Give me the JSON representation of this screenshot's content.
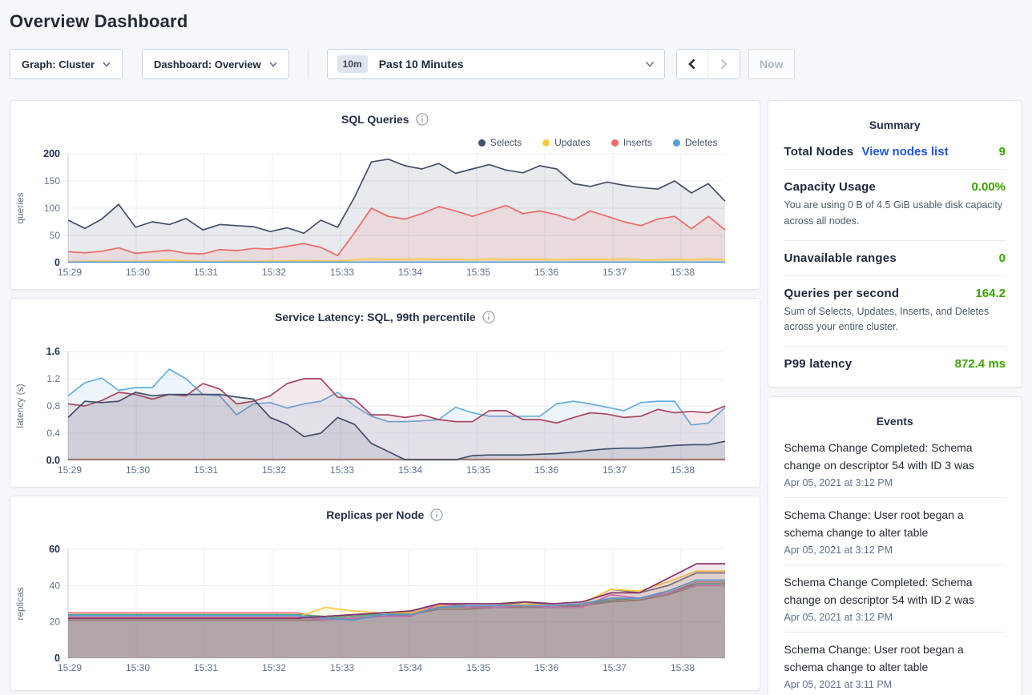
{
  "page": {
    "title": "Overview Dashboard"
  },
  "toolbar": {
    "graph_dropdown": {
      "label": "Graph: Cluster"
    },
    "dashboard_dropdown": {
      "label": "Dashboard: Overview"
    },
    "time_picker": {
      "badge": "10m",
      "label": "Past 10 Minutes"
    },
    "now_button": "Now"
  },
  "colors": {
    "selects": "#44506B",
    "updates": "#FFC940",
    "inserts": "#F06969",
    "deletes": "#55A3D6",
    "link_blue": "#2057DE",
    "value_green": "#3CA200"
  },
  "chart_data": [
    {
      "type": "area",
      "title": "SQL Queries",
      "ylabel": "queries",
      "ymax": 200,
      "ytick_values": [
        0,
        50,
        100,
        150,
        200
      ],
      "ytick_labels": [
        "0",
        "50",
        "100",
        "150",
        "200"
      ],
      "xticks": [
        "15:29",
        "15:30",
        "15:31",
        "15:32",
        "15:33",
        "15:34",
        "15:35",
        "15:36",
        "15:37",
        "15:38"
      ],
      "legend": [
        {
          "name": "Selects",
          "color": "#44506B"
        },
        {
          "name": "Updates",
          "color": "#FFC940"
        },
        {
          "name": "Inserts",
          "color": "#F06969"
        },
        {
          "name": "Deletes",
          "color": "#55A3D6"
        }
      ],
      "series": [
        {
          "name": "Selects",
          "color": "#44506B",
          "values": [
            78,
            63,
            80,
            107,
            65,
            75,
            70,
            81,
            60,
            70,
            68,
            66,
            57,
            64,
            54,
            78,
            65,
            120,
            185,
            190,
            178,
            172,
            182,
            164,
            172,
            180,
            170,
            165,
            178,
            172,
            145,
            140,
            148,
            142,
            138,
            135,
            150,
            128,
            145,
            113
          ]
        },
        {
          "name": "Inserts",
          "color": "#F06969",
          "values": [
            20,
            18,
            21,
            27,
            17,
            20,
            23,
            17,
            16,
            24,
            22,
            26,
            25,
            30,
            35,
            28,
            13,
            55,
            100,
            85,
            80,
            90,
            103,
            95,
            85,
            95,
            105,
            90,
            95,
            88,
            78,
            95,
            85,
            75,
            68,
            80,
            85,
            62,
            85,
            60
          ]
        },
        {
          "name": "Updates",
          "color": "#FFC940",
          "values": [
            2,
            2,
            3,
            2,
            2,
            3,
            5,
            3,
            2,
            2,
            3,
            2,
            3,
            3,
            4,
            3,
            3,
            5,
            7,
            6,
            6,
            7,
            6,
            6,
            5,
            7,
            6,
            6,
            6,
            5,
            6,
            6,
            6,
            7,
            5,
            5,
            6,
            5,
            7,
            5
          ]
        },
        {
          "name": "Deletes",
          "color": "#55A3D6",
          "values": [
            1,
            1,
            1,
            1,
            1,
            1,
            1,
            1,
            1,
            1,
            1,
            1,
            1,
            1,
            1,
            1,
            1,
            1,
            1,
            1,
            1,
            1,
            1,
            1,
            1,
            1,
            1,
            1,
            1,
            1,
            1,
            1,
            1,
            1,
            1,
            1,
            1,
            1,
            1,
            1
          ]
        }
      ]
    },
    {
      "type": "area",
      "title": "Service Latency: SQL, 99th percentile",
      "ylabel": "latency (s)",
      "ymax": 1.6,
      "ytick_values": [
        0,
        0.4,
        0.8,
        1.2,
        1.6
      ],
      "ytick_labels": [
        "0.0",
        "0.4",
        "0.8",
        "1.2",
        "1.6"
      ],
      "xticks": [
        "15:29",
        "15:30",
        "15:31",
        "15:32",
        "15:33",
        "15:34",
        "15:35",
        "15:36",
        "15:37",
        "15:38"
      ],
      "series": [
        {
          "name": "s-baseline",
          "color": "#B5754C",
          "values": [
            0.015,
            0.015,
            0.015,
            0.015,
            0.015,
            0.015,
            0.015,
            0.015,
            0.015,
            0.015,
            0.015,
            0.015,
            0.015,
            0.015,
            0.015,
            0.015,
            0.015,
            0.015,
            0.015,
            0.015,
            0.015,
            0.015,
            0.015,
            0.015,
            0.015,
            0.015,
            0.015,
            0.015,
            0.015,
            0.015,
            0.015,
            0.015,
            0.015,
            0.015,
            0.015,
            0.015,
            0.015,
            0.015,
            0.015,
            0.015
          ]
        },
        {
          "name": "s-blue",
          "color": "#67AEDC",
          "values": [
            0.95,
            1.14,
            1.21,
            1.03,
            1.07,
            1.07,
            1.34,
            1.2,
            0.97,
            0.95,
            0.67,
            0.83,
            0.85,
            0.77,
            0.83,
            0.87,
            1.0,
            0.8,
            0.65,
            0.57,
            0.57,
            0.58,
            0.6,
            0.78,
            0.7,
            0.65,
            0.65,
            0.65,
            0.65,
            0.83,
            0.87,
            0.83,
            0.78,
            0.73,
            0.85,
            0.87,
            0.87,
            0.52,
            0.55,
            0.78
          ]
        },
        {
          "name": "s-maroon",
          "color": "#A84860",
          "values": [
            0.83,
            0.8,
            0.88,
            1.0,
            0.97,
            0.9,
            0.97,
            0.95,
            1.13,
            1.05,
            0.83,
            0.87,
            0.95,
            1.13,
            1.2,
            1.2,
            0.93,
            0.9,
            0.67,
            0.67,
            0.63,
            0.67,
            0.6,
            0.57,
            0.57,
            0.73,
            0.73,
            0.6,
            0.6,
            0.55,
            0.63,
            0.7,
            0.68,
            0.63,
            0.65,
            0.75,
            0.7,
            0.72,
            0.7,
            0.8
          ]
        },
        {
          "name": "s-navy",
          "color": "#44506B",
          "values": [
            0.63,
            0.87,
            0.85,
            0.87,
            1.0,
            0.95,
            0.97,
            0.97,
            0.97,
            0.97,
            0.93,
            0.9,
            0.63,
            0.53,
            0.35,
            0.4,
            0.63,
            0.53,
            0.25,
            0.13,
            0.01,
            0.01,
            0.01,
            0.01,
            0.07,
            0.08,
            0.08,
            0.08,
            0.09,
            0.1,
            0.12,
            0.15,
            0.17,
            0.18,
            0.18,
            0.2,
            0.22,
            0.23,
            0.23,
            0.28
          ]
        }
      ]
    },
    {
      "type": "area",
      "title": "Replicas per Node",
      "ylabel": "replicas",
      "ymax": 60,
      "ytick_values": [
        0,
        20,
        40,
        60
      ],
      "ytick_labels": [
        "0",
        "20",
        "40",
        "60"
      ],
      "xticks": [
        "15:29",
        "15:30",
        "15:31",
        "15:32",
        "15:33",
        "15:34",
        "15:35",
        "15:36",
        "15:37",
        "15:38"
      ],
      "series": [
        {
          "name": "s1",
          "color": "#ED6E6E",
          "values": [
            25,
            25,
            25,
            25,
            25,
            25,
            25,
            25,
            25,
            22,
            23,
            24,
            24,
            29,
            28,
            28,
            29,
            28,
            29,
            33,
            33,
            36,
            42,
            42
          ]
        },
        {
          "name": "s2",
          "color": "#44A06C",
          "values": [
            24,
            24,
            24,
            24,
            24,
            24,
            24,
            24,
            24,
            23,
            24,
            24,
            25,
            29,
            29,
            28,
            29,
            29,
            29,
            32,
            33,
            36,
            41,
            41
          ]
        },
        {
          "name": "s3",
          "color": "#49C090",
          "values": [
            23.5,
            23.5,
            23.5,
            23.5,
            23.5,
            23.5,
            23.5,
            23.5,
            23.5,
            22,
            23,
            24,
            24,
            28,
            28,
            28,
            29,
            28,
            29,
            31,
            32,
            35,
            40,
            40
          ]
        },
        {
          "name": "s4",
          "color": "#9C7355",
          "values": [
            21,
            21,
            21,
            21,
            21,
            21,
            21,
            21,
            21,
            21,
            22,
            23,
            24,
            27,
            27,
            28,
            28,
            28,
            29,
            31,
            32,
            35,
            40,
            40
          ]
        },
        {
          "name": "s5",
          "color": "#5F6C87",
          "values": [
            22,
            22,
            22,
            22,
            22,
            22,
            22,
            22,
            22,
            23,
            24,
            25,
            26,
            30,
            29,
            29,
            31,
            29,
            30,
            38,
            36,
            40,
            47,
            47
          ]
        },
        {
          "name": "s6",
          "color": "#FFC940",
          "values": [
            22.5,
            22.5,
            22.5,
            22.5,
            22.5,
            22.5,
            22.5,
            22.5,
            22.5,
            28,
            26,
            25,
            25,
            29,
            29,
            29,
            30,
            29,
            30,
            38,
            37,
            42,
            48,
            48
          ]
        },
        {
          "name": "s7",
          "color": "#D873B4",
          "values": [
            23,
            23,
            23,
            23,
            23,
            23,
            23,
            23,
            23,
            21,
            22,
            23,
            23,
            30,
            28,
            28,
            29,
            28,
            28,
            35,
            33,
            36,
            40,
            40
          ]
        },
        {
          "name": "s8",
          "color": "#55A3D6",
          "values": [
            23.5,
            23.5,
            23.5,
            23.5,
            23.5,
            23.5,
            23.5,
            23.5,
            23.5,
            22,
            21,
            24,
            24,
            28,
            29,
            29,
            29,
            29,
            30,
            33,
            33,
            37,
            43,
            43
          ]
        },
        {
          "name": "s9",
          "color": "#87326D",
          "values": [
            22,
            22,
            22,
            22,
            22,
            22,
            22,
            22,
            22,
            23,
            24,
            25,
            26,
            30,
            30,
            30,
            31,
            30,
            31,
            36,
            36,
            44,
            52,
            52
          ]
        }
      ]
    }
  ],
  "summary": {
    "title": "Summary",
    "total_nodes": {
      "label": "Total Nodes",
      "link": "View nodes list",
      "value": "9"
    },
    "capacity": {
      "label": "Capacity Usage",
      "value": "0.00%",
      "desc": "You are using 0 B of 4.5 GiB usable disk capacity across all nodes."
    },
    "unavailable": {
      "label": "Unavailable ranges",
      "value": "0"
    },
    "qps": {
      "label": "Queries per second",
      "value": "164.2",
      "desc": "Sum of Selects, Updates, Inserts, and Deletes across your entire cluster."
    },
    "p99": {
      "label": "P99 latency",
      "value": "872.4 ms"
    }
  },
  "events": {
    "title": "Events",
    "items": [
      {
        "message": "Schema Change Completed: Schema change on descriptor 54 with ID 3 was",
        "time": "Apr 05, 2021 at 3:12 PM"
      },
      {
        "message": "Schema Change: User root began a schema change to alter table",
        "time": "Apr 05, 2021 at 3:12 PM"
      },
      {
        "message": "Schema Change Completed: Schema change on descriptor 54 with ID 2 was",
        "time": "Apr 05, 2021 at 3:12 PM"
      },
      {
        "message": "Schema Change: User root began a schema change to alter table",
        "time": "Apr 05, 2021 at 3:11 PM"
      }
    ]
  }
}
